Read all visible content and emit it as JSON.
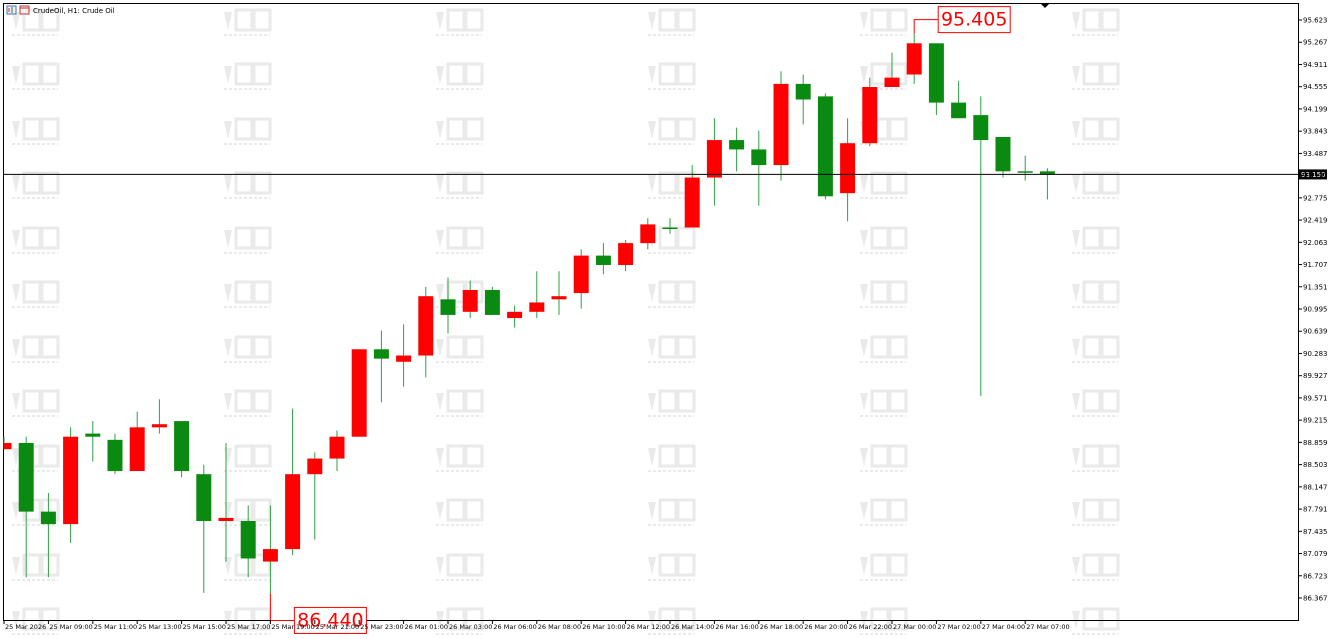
{
  "header": {
    "title": "CrudeOil, H1:  Crude Oil"
  },
  "colors": {
    "bull": "#0b8a12",
    "bear": "#ff0000",
    "wick": "#2ea043",
    "price_line": "#000000",
    "price_label_bg": "#000000",
    "price_label_text": "#ffffff",
    "watermark": "#d9d9d9"
  },
  "chart_data": {
    "type": "candlestick",
    "timeframe": "H1",
    "symbol": "CrudeOil",
    "ylim": [
      86.2,
      95.7
    ],
    "yticks": [
      "95.623",
      "95.267",
      "94.911",
      "94.555",
      "94.199",
      "93.843",
      "93.487",
      "93.131",
      "92.775",
      "92.419",
      "92.063",
      "91.707",
      "91.351",
      "90.995",
      "90.639",
      "90.283",
      "89.927",
      "89.571",
      "89.215",
      "88.859",
      "88.503",
      "88.147",
      "87.791",
      "87.435",
      "87.079",
      "86.723",
      "86.367"
    ],
    "xticks": [
      "25 Mar 2026",
      "25 Mar 09:00",
      "25 Mar 11:00",
      "25 Mar 13:00",
      "25 Mar 15:00",
      "25 Mar 17:00",
      "25 Mar 19:00",
      "25 Mar 21:00",
      "25 Mar 23:00",
      "26 Mar 01:00",
      "26 Mar 03:00",
      "26 Mar 06:00",
      "26 Mar 08:00",
      "26 Mar 10:00",
      "26 Mar 12:00",
      "26 Mar 14:00",
      "26 Mar 16:00",
      "26 Mar 18:00",
      "26 Mar 20:00",
      "26 Mar 22:00",
      "27 Mar 00:00",
      "27 Mar 02:00",
      "27 Mar 04:00",
      "27 Mar 07:00"
    ],
    "current_price": "93.150",
    "current_price_value": 93.15,
    "annotations": [
      {
        "text": "95.405",
        "value": 95.405,
        "candle_index": 41
      },
      {
        "text": "86.440",
        "value": 86.44,
        "candle_index": 12
      }
    ],
    "candles": [
      {
        "o": 88.85,
        "h": 88.95,
        "l": 88.75,
        "c": 88.75
      },
      {
        "o": 87.75,
        "h": 88.95,
        "l": 86.7,
        "c": 88.85
      },
      {
        "o": 87.55,
        "h": 88.05,
        "l": 86.7,
        "c": 87.75
      },
      {
        "o": 88.95,
        "h": 89.1,
        "l": 87.25,
        "c": 87.55
      },
      {
        "o": 88.95,
        "h": 89.2,
        "l": 88.55,
        "c": 89.0
      },
      {
        "o": 88.4,
        "h": 89.0,
        "l": 88.35,
        "c": 88.9
      },
      {
        "o": 89.1,
        "h": 89.35,
        "l": 88.4,
        "c": 88.4
      },
      {
        "o": 89.15,
        "h": 89.55,
        "l": 89.0,
        "c": 89.1
      },
      {
        "o": 88.4,
        "h": 89.2,
        "l": 88.3,
        "c": 89.2
      },
      {
        "o": 87.6,
        "h": 88.5,
        "l": 86.45,
        "c": 88.35
      },
      {
        "o": 87.65,
        "h": 88.85,
        "l": 86.95,
        "c": 87.6
      },
      {
        "o": 87.0,
        "h": 87.85,
        "l": 86.7,
        "c": 87.6
      },
      {
        "o": 87.15,
        "h": 87.85,
        "l": 86.44,
        "c": 86.95
      },
      {
        "o": 88.35,
        "h": 89.4,
        "l": 87.05,
        "c": 87.15
      },
      {
        "o": 88.6,
        "h": 88.7,
        "l": 87.3,
        "c": 88.35
      },
      {
        "o": 88.95,
        "h": 89.05,
        "l": 88.4,
        "c": 88.6
      },
      {
        "o": 90.35,
        "h": 90.35,
        "l": 88.95,
        "c": 88.95
      },
      {
        "o": 90.2,
        "h": 90.65,
        "l": 89.5,
        "c": 90.35
      },
      {
        "o": 90.25,
        "h": 90.75,
        "l": 89.75,
        "c": 90.15
      },
      {
        "o": 91.2,
        "h": 91.35,
        "l": 89.9,
        "c": 90.25
      },
      {
        "o": 90.9,
        "h": 91.5,
        "l": 90.6,
        "c": 91.15
      },
      {
        "o": 91.3,
        "h": 91.45,
        "l": 90.85,
        "c": 90.95
      },
      {
        "o": 90.9,
        "h": 91.35,
        "l": 90.9,
        "c": 91.3
      },
      {
        "o": 90.95,
        "h": 91.05,
        "l": 90.7,
        "c": 90.85
      },
      {
        "o": 91.1,
        "h": 91.6,
        "l": 90.85,
        "c": 90.95
      },
      {
        "o": 91.2,
        "h": 91.6,
        "l": 90.9,
        "c": 91.15
      },
      {
        "o": 91.85,
        "h": 91.95,
        "l": 91.0,
        "c": 91.25
      },
      {
        "o": 91.7,
        "h": 92.05,
        "l": 91.55,
        "c": 91.85
      },
      {
        "o": 92.05,
        "h": 92.1,
        "l": 91.6,
        "c": 91.7
      },
      {
        "o": 92.35,
        "h": 92.45,
        "l": 91.95,
        "c": 92.05
      },
      {
        "o": 92.3,
        "h": 92.45,
        "l": 92.2,
        "c": 92.3
      },
      {
        "o": 93.1,
        "h": 93.3,
        "l": 92.3,
        "c": 92.3
      },
      {
        "o": 93.7,
        "h": 94.05,
        "l": 92.65,
        "c": 93.1
      },
      {
        "o": 93.55,
        "h": 93.9,
        "l": 93.2,
        "c": 93.7
      },
      {
        "o": 93.3,
        "h": 93.85,
        "l": 92.65,
        "c": 93.55
      },
      {
        "o": 94.6,
        "h": 94.8,
        "l": 93.05,
        "c": 93.3
      },
      {
        "o": 94.35,
        "h": 94.75,
        "l": 93.95,
        "c": 94.6
      },
      {
        "o": 92.8,
        "h": 94.45,
        "l": 92.75,
        "c": 94.4
      },
      {
        "o": 93.65,
        "h": 94.05,
        "l": 92.4,
        "c": 92.85
      },
      {
        "o": 94.55,
        "h": 94.7,
        "l": 93.6,
        "c": 93.65
      },
      {
        "o": 94.7,
        "h": 95.1,
        "l": 94.55,
        "c": 94.55
      },
      {
        "o": 95.25,
        "h": 95.405,
        "l": 94.6,
        "c": 94.75
      },
      {
        "o": 94.3,
        "h": 95.25,
        "l": 94.1,
        "c": 95.25
      },
      {
        "o": 94.05,
        "h": 94.65,
        "l": 94.05,
        "c": 94.3
      },
      {
        "o": 93.7,
        "h": 94.4,
        "l": 89.6,
        "c": 94.1
      },
      {
        "o": 93.2,
        "h": 93.7,
        "l": 93.1,
        "c": 93.75
      },
      {
        "o": 93.2,
        "h": 93.45,
        "l": 93.05,
        "c": 93.2
      },
      {
        "o": 93.15,
        "h": 93.25,
        "l": 92.75,
        "c": 93.2
      }
    ]
  }
}
